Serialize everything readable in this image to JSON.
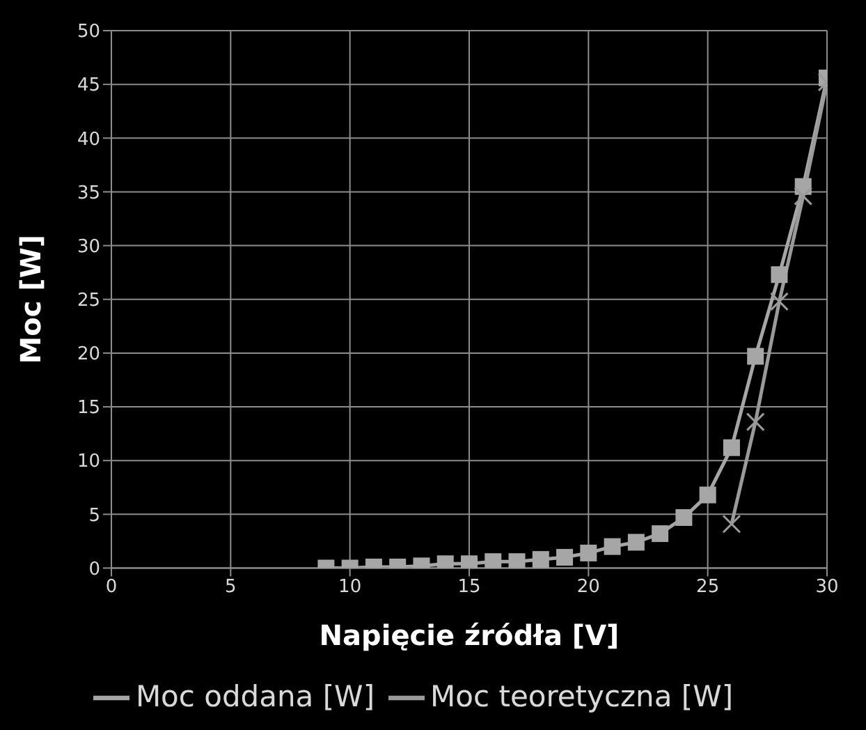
{
  "chart_data": {
    "type": "line",
    "xlabel": "Napięcie źródła [V]",
    "ylabel": "Moc [W]",
    "xlim": [
      0,
      30
    ],
    "xticks": [
      0,
      5,
      10,
      15,
      20,
      25,
      30
    ],
    "ylim": [
      0,
      50
    ],
    "yticks": [
      0,
      5,
      10,
      15,
      20,
      25,
      30,
      35,
      40,
      45,
      50
    ],
    "grid": true,
    "legend": "bottom",
    "series": [
      {
        "name": "Moc oddana [W]",
        "color": "#a6a6a6",
        "marker": "square",
        "x": [
          9,
          10,
          11,
          12,
          13,
          14,
          15,
          16,
          17,
          18,
          19,
          20,
          21,
          22,
          23,
          24,
          25,
          26,
          27,
          28,
          29,
          30
        ],
        "values": [
          0,
          0,
          0.1,
          0.1,
          0.2,
          0.4,
          0.4,
          0.6,
          0.6,
          0.8,
          1.0,
          1.4,
          2.0,
          2.4,
          3.2,
          4.7,
          6.8,
          11.2,
          19.7,
          27.3,
          35.5,
          45.6
        ]
      },
      {
        "name": "Moc teoretyczna [W]",
        "color": "#9a9a9a",
        "marker": "cross",
        "x": [
          26,
          27,
          28,
          29,
          30
        ],
        "values": [
          4.1,
          13.6,
          24.8,
          34.6,
          45.2
        ]
      }
    ]
  }
}
